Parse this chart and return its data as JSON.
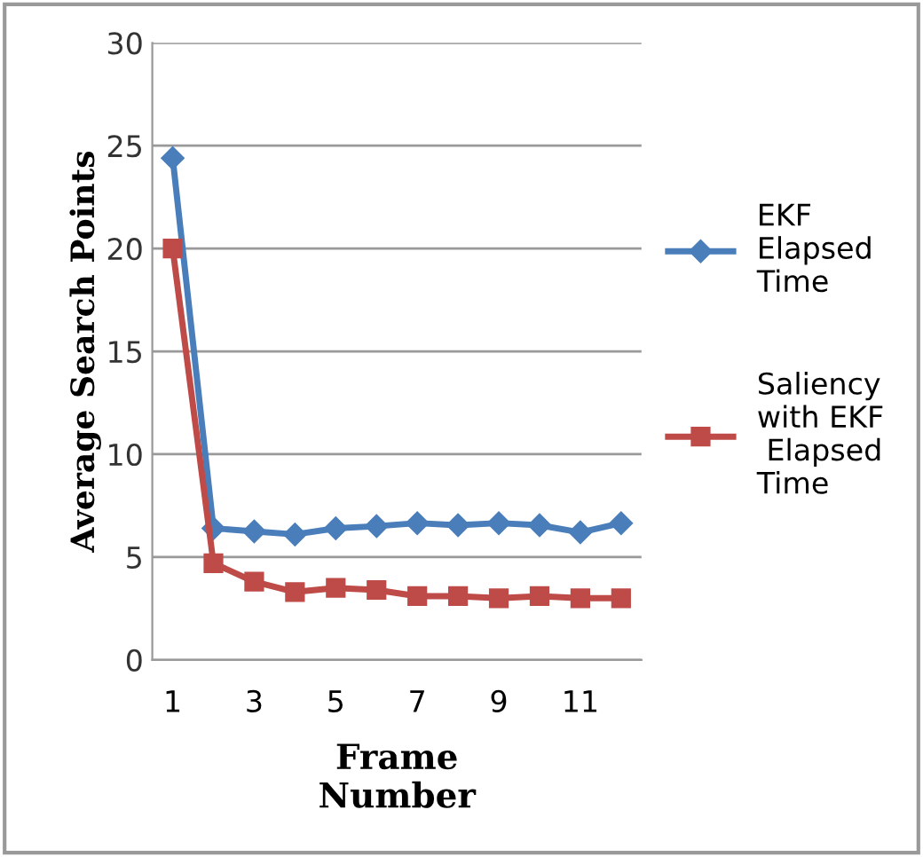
{
  "chart_data": {
    "type": "line",
    "xlabel": "Frame\nNumber",
    "ylabel": "Average Search Points",
    "categories": [
      "1",
      null,
      "3",
      null,
      "5",
      null,
      "7",
      null,
      "9",
      null,
      "11",
      null
    ],
    "series": [
      {
        "name": "EKF\nElapsed\nTime",
        "color": "#4a7ebb",
        "marker": "diamond",
        "values": [
          24.4,
          6.4,
          6.25,
          6.1,
          6.4,
          6.5,
          6.65,
          6.55,
          6.65,
          6.55,
          6.2,
          6.65
        ]
      },
      {
        "name": "Saliency\nwith EKF\n Elapsed\nTime",
        "color": "#be4b48",
        "marker": "square",
        "values": [
          20.0,
          4.7,
          3.8,
          3.3,
          3.5,
          3.4,
          3.1,
          3.1,
          3.0,
          3.1,
          3.0,
          3.0
        ]
      }
    ],
    "ylim": [
      0,
      30
    ],
    "yticks": [
      0,
      5,
      10,
      15,
      20,
      25,
      30
    ],
    "grid": "y",
    "legend": "right"
  }
}
